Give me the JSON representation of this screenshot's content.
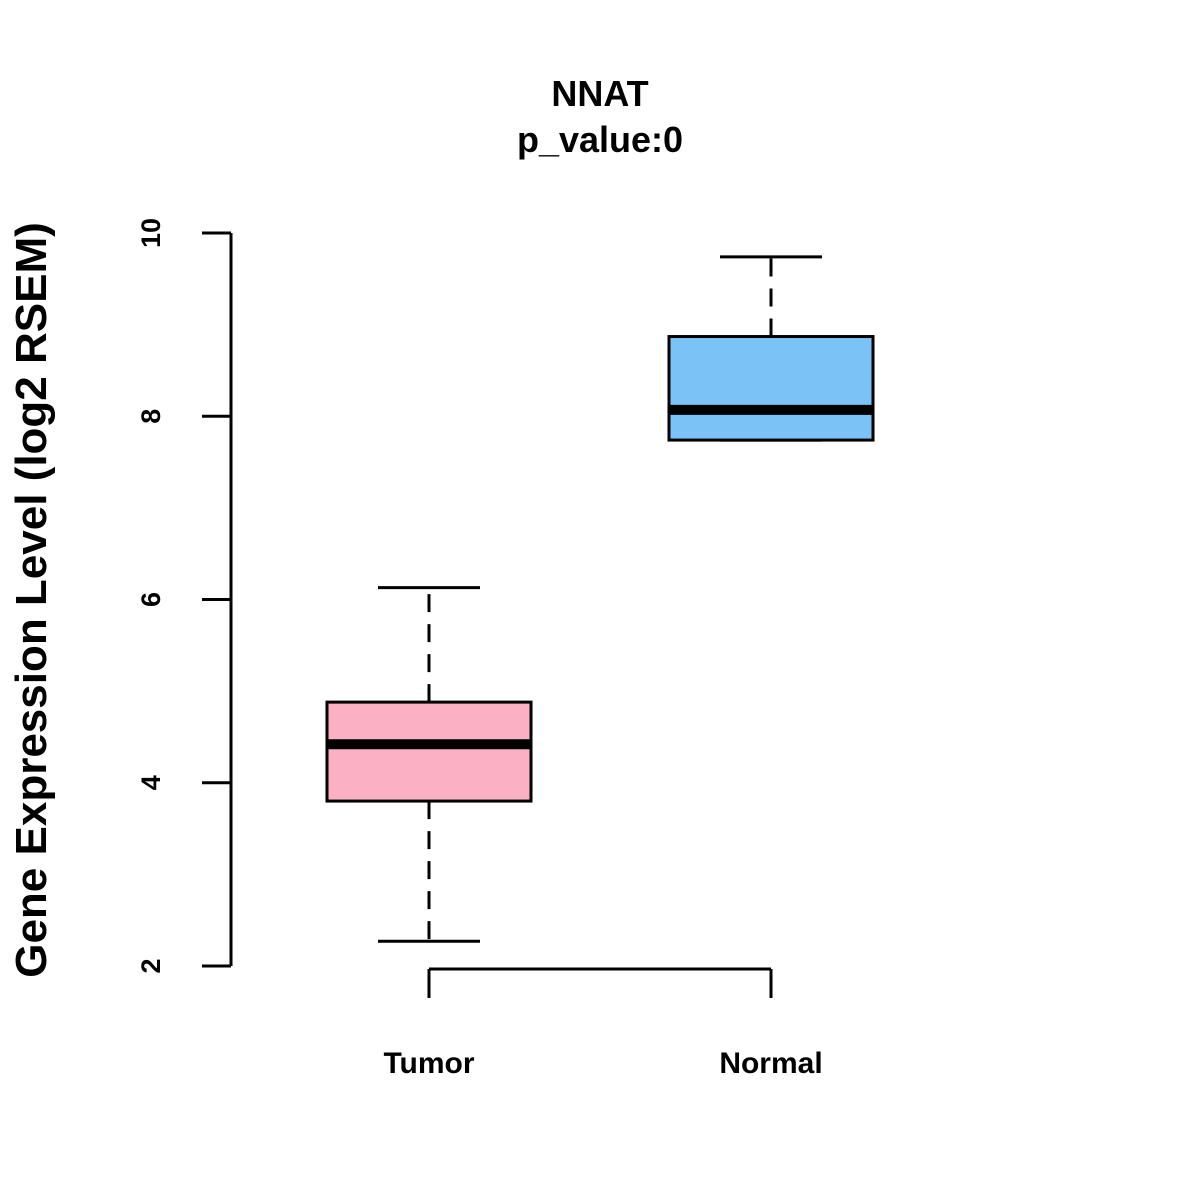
{
  "chart_data": {
    "type": "boxplot",
    "title": "NNAT",
    "subtitle": "p_value:0",
    "xlabel": "",
    "ylabel": "Gene Expression Level (log2 RSEM)",
    "ylim": [
      2,
      10
    ],
    "yticks": [
      2,
      4,
      6,
      8,
      10
    ],
    "grid": false,
    "categories": [
      "Tumor",
      "Normal"
    ],
    "boxes": [
      {
        "name": "Tumor",
        "color": "#FBB0C4",
        "whisker_low": 2.27,
        "q1": 3.8,
        "median": 4.42,
        "q3": 4.88,
        "whisker_high": 6.13
      },
      {
        "name": "Normal",
        "color": "#7BC2F7",
        "whisker_low": 7.74,
        "q1": 7.74,
        "median": 8.07,
        "q3": 8.87,
        "whisker_high": 9.74
      }
    ]
  }
}
